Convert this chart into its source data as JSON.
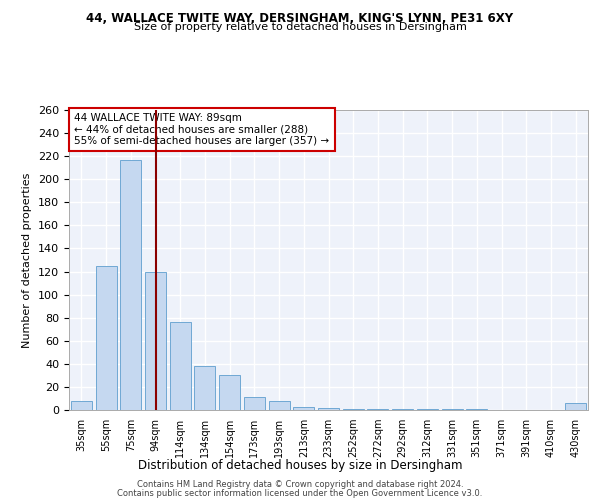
{
  "title1": "44, WALLACE TWITE WAY, DERSINGHAM, KING'S LYNN, PE31 6XY",
  "title2": "Size of property relative to detached houses in Dersingham",
  "xlabel": "Distribution of detached houses by size in Dersingham",
  "ylabel": "Number of detached properties",
  "categories": [
    "35sqm",
    "55sqm",
    "75sqm",
    "94sqm",
    "114sqm",
    "134sqm",
    "154sqm",
    "173sqm",
    "193sqm",
    "213sqm",
    "233sqm",
    "252sqm",
    "272sqm",
    "292sqm",
    "312sqm",
    "331sqm",
    "351sqm",
    "371sqm",
    "391sqm",
    "410sqm",
    "430sqm"
  ],
  "values": [
    8,
    125,
    217,
    120,
    76,
    38,
    30,
    11,
    8,
    3,
    2,
    1,
    1,
    1,
    1,
    1,
    1,
    0,
    0,
    0,
    6
  ],
  "bar_color": "#c5d8f0",
  "bar_edge_color": "#6fa8d4",
  "bar_width": 0.85,
  "vline_x": 3.0,
  "vline_color": "#8b0000",
  "annotation_text": "44 WALLACE TWITE WAY: 89sqm\n← 44% of detached houses are smaller (288)\n55% of semi-detached houses are larger (357) →",
  "annotation_box_color": "#ffffff",
  "annotation_border_color": "#cc0000",
  "ylim": [
    0,
    260
  ],
  "yticks": [
    0,
    20,
    40,
    60,
    80,
    100,
    120,
    140,
    160,
    180,
    200,
    220,
    240,
    260
  ],
  "background_color": "#eef2fa",
  "grid_color": "#ffffff",
  "footer1": "Contains HM Land Registry data © Crown copyright and database right 2024.",
  "footer2": "Contains public sector information licensed under the Open Government Licence v3.0."
}
